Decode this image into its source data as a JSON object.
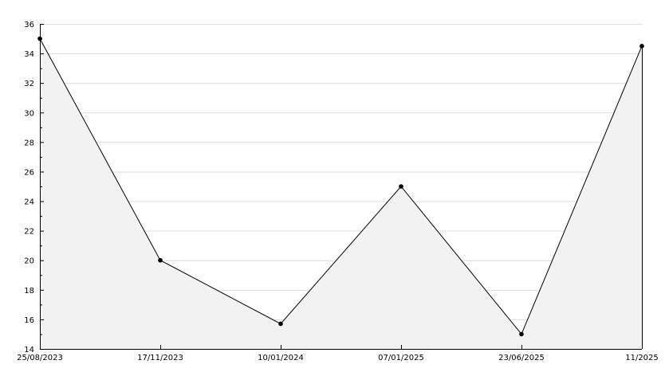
{
  "chart_data": {
    "type": "area",
    "title": "",
    "xlabel": "",
    "ylabel": "",
    "categories": [
      "25/08/2023",
      "17/11/2023",
      "10/01/2024",
      "07/01/2025",
      "23/06/2025",
      "11/2025"
    ],
    "values": [
      35,
      20,
      15.7,
      25,
      15,
      34.5
    ],
    "ylim": [
      14,
      36
    ],
    "yticks": [
      "14",
      "16",
      "18",
      "20",
      "22",
      "24",
      "26",
      "28",
      "30",
      "32",
      "34",
      "36"
    ],
    "grid": true,
    "legend": "none",
    "colors": {
      "line": "#000000",
      "fill": "#f2f2f2",
      "grid": "#dddddd",
      "marker": "#000000"
    }
  }
}
